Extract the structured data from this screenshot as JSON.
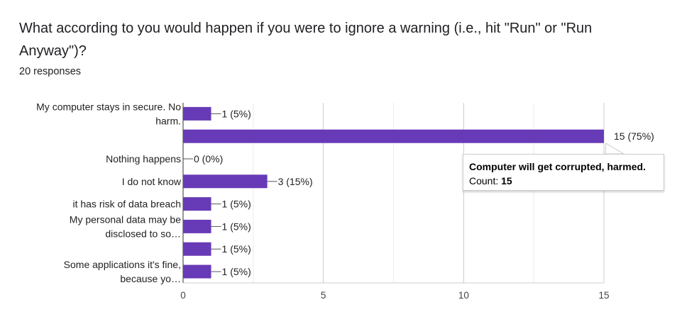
{
  "question": {
    "title": "What according to you would happen if you were to ignore a warning (i.e., hit \"Run\" or \"Run Anyway\")?",
    "responses": "20 responses"
  },
  "chart_data": {
    "type": "bar",
    "orientation": "horizontal",
    "categories": [
      [
        "My computer stays in secure. No",
        "harm."
      ],
      [],
      [
        "Nothing happens"
      ],
      [
        "I do not know"
      ],
      [
        "it has risk of data breach"
      ],
      [
        "My personal data may be",
        "disclosed to so…"
      ],
      [],
      [
        "Some applications it's fine,",
        "because yo…"
      ]
    ],
    "values": [
      1,
      15,
      0,
      3,
      1,
      1,
      1,
      1
    ],
    "value_labels": [
      "1 (5%)",
      "15 (75%)",
      "0 (0%)",
      "3 (15%)",
      "1 (5%)",
      "1 (5%)",
      "1 (5%)",
      "1 (5%)"
    ],
    "xlim": [
      0,
      15
    ],
    "xticks": [
      0,
      5,
      10,
      15
    ],
    "grid": true,
    "bar_color": "#673ab7"
  },
  "tooltip": {
    "title": "Computer will get corrupted, harmed.",
    "count_label": "Count: ",
    "count_value": "15"
  }
}
